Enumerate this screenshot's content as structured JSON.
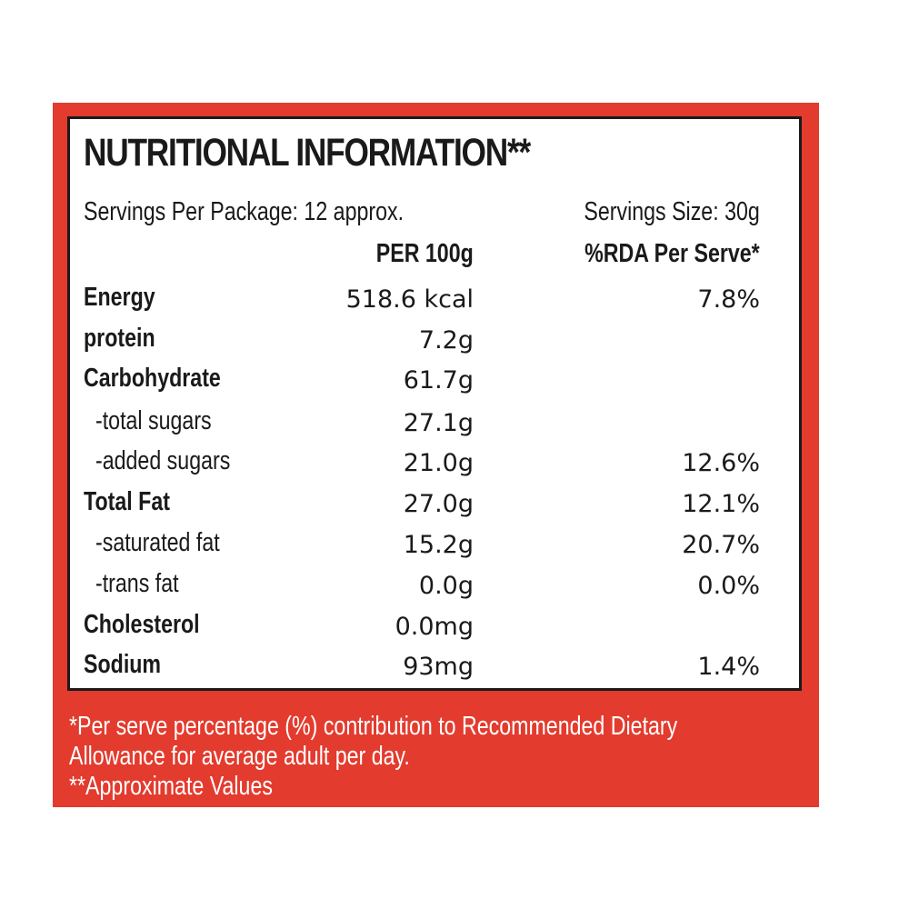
{
  "title": "NUTRITIONAL INFORMATION**",
  "servings_per_package": "Servings Per Package: 12 approx.",
  "serving_size": "Servings Size: 30g",
  "col_per100": "PER 100g",
  "col_rda": "%RDA Per Serve*",
  "rows": [
    {
      "label": "Energy",
      "per100": "518.6 kcal",
      "rda": "7.8%"
    },
    {
      "label": "protein",
      "per100": "7.2g",
      "rda": ""
    },
    {
      "label": "Carbohydrate",
      "per100": "61.7g",
      "rda": ""
    },
    {
      "label": "-total sugars",
      "per100": "27.1g",
      "rda": ""
    },
    {
      "label": "-added sugars",
      "per100": "21.0g",
      "rda": "12.6%"
    },
    {
      "label": "Total Fat",
      "per100": "27.0g",
      "rda": "12.1%"
    },
    {
      "label": "-saturated fat",
      "per100": "15.2g",
      "rda": "20.7%"
    },
    {
      "label": "-trans fat",
      "per100": "0.0g",
      "rda": "0.0%"
    },
    {
      "label": "Cholesterol",
      "per100": "0.0mg",
      "rda": ""
    },
    {
      "label": "Sodium",
      "per100": "93mg",
      "rda": "1.4%"
    }
  ],
  "footnotes": [
    "*Per serve percentage (%) contribution to Recommended Dietary",
    "Allowance for average adult per day.",
    "**Approximate Values"
  ],
  "colors": {
    "panel": "#e33b2e",
    "border": "#1a1a1a",
    "text": "#1a1a1a",
    "footnote_text": "#ffffff"
  }
}
